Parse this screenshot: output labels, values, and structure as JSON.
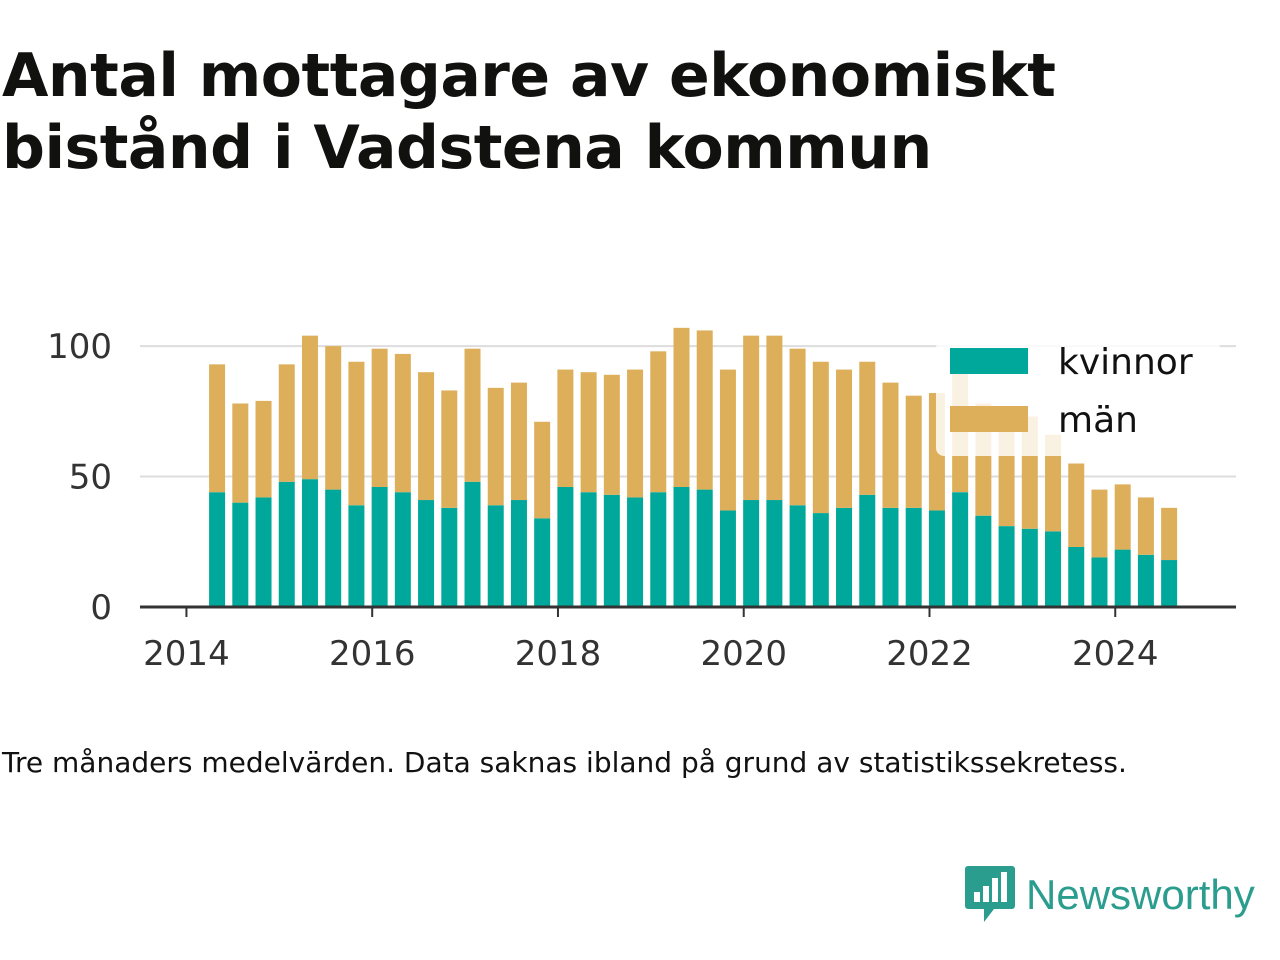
{
  "title": "Antal mottagare av ekonomiskt bistånd i Vadstena kommun",
  "note": "Tre månaders medelvärden. Data saknas ibland på grund av statistikssekretess.",
  "logo": {
    "text": "Newsworthy",
    "icon": "newsworthy-chart-bubble-icon",
    "color": "#2a9d8f"
  },
  "chart_data": {
    "type": "bar",
    "stacked": true,
    "x_axis": {
      "ticks": [
        "2014",
        "2016",
        "2018",
        "2020",
        "2022",
        "2024"
      ],
      "min": 2013.5,
      "max": 2025.3
    },
    "y_axis": {
      "ticks": [
        "0",
        "50",
        "100"
      ],
      "ylim": [
        0,
        110
      ]
    },
    "grid": true,
    "legend_position": "top-right",
    "x": [
      2014.33,
      2014.58,
      2014.83,
      2015.08,
      2015.33,
      2015.58,
      2015.83,
      2016.08,
      2016.33,
      2016.58,
      2016.83,
      2017.08,
      2017.33,
      2017.58,
      2017.83,
      2018.08,
      2018.33,
      2018.58,
      2018.83,
      2019.08,
      2019.33,
      2019.58,
      2019.83,
      2020.08,
      2020.33,
      2020.58,
      2020.83,
      2021.08,
      2021.33,
      2021.58,
      2021.83,
      2022.08,
      2022.33,
      2022.58,
      2022.83,
      2023.08,
      2023.33,
      2023.58,
      2023.83,
      2024.08,
      2024.33,
      2024.58
    ],
    "series": [
      {
        "name": "kvinnor",
        "color": "#00a79b",
        "values": [
          44,
          40,
          42,
          48,
          49,
          45,
          39,
          46,
          44,
          41,
          38,
          48,
          39,
          41,
          34,
          46,
          44,
          43,
          42,
          44,
          46,
          45,
          37,
          41,
          41,
          39,
          36,
          38,
          43,
          38,
          38,
          37,
          44,
          35,
          31,
          30,
          29,
          23,
          19,
          22,
          20,
          18
        ]
      },
      {
        "name": "män",
        "color": "#ddaf5b",
        "values": [
          49,
          38,
          37,
          45,
          55,
          55,
          55,
          53,
          53,
          49,
          45,
          51,
          45,
          45,
          37,
          45,
          46,
          46,
          49,
          54,
          61,
          61,
          54,
          63,
          63,
          60,
          58,
          53,
          51,
          48,
          43,
          45,
          46,
          43,
          38,
          43,
          37,
          32,
          26,
          25,
          22,
          20
        ]
      }
    ]
  }
}
